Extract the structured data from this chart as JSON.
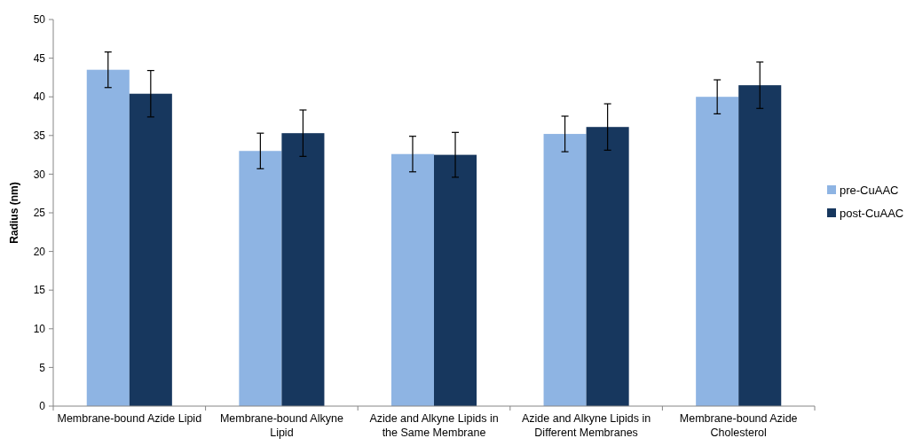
{
  "chart_data": {
    "type": "bar",
    "ylabel": "Radius (nm)",
    "categories": [
      "Membrane-bound Azide Lipid",
      "Membrane-bound Alkyne Lipid",
      "Azide and Alkyne Lipids in the Same Membrane",
      "Azide and Alkyne Lipids in Different Membranes",
      "Membrane-bound Azide Cholesterol"
    ],
    "series": [
      {
        "name": "pre-CuAAC",
        "color": "#8eb4e3",
        "values": [
          43.5,
          33.0,
          32.6,
          35.2,
          40.0
        ],
        "errors": [
          2.3,
          2.3,
          2.3,
          2.3,
          2.2
        ]
      },
      {
        "name": "post-CuAAC",
        "color": "#17375e",
        "values": [
          40.4,
          35.3,
          32.5,
          36.1,
          41.5
        ],
        "errors": [
          3.0,
          3.0,
          2.9,
          3.0,
          3.0
        ]
      }
    ],
    "ylim": [
      0,
      50
    ],
    "yticks": [
      0,
      5,
      10,
      15,
      20,
      25,
      30,
      35,
      40,
      45,
      50
    ],
    "grid": false,
    "legend": "right"
  }
}
